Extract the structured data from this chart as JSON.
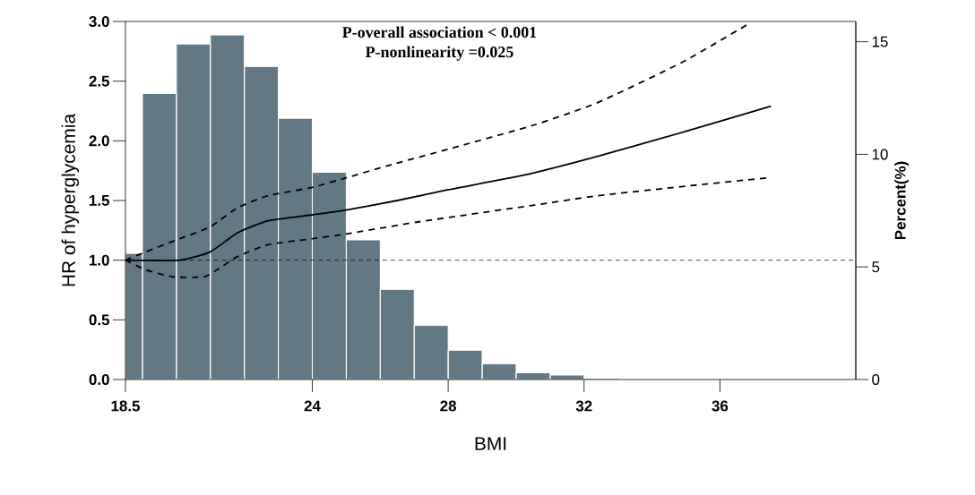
{
  "chart_data": {
    "type": "line",
    "xlabel": "BMI",
    "ylabel": "HR of hyperglycemia",
    "y2label": "Percent(%)",
    "annotations": [
      "**P-overall association < 0.001**",
      "**P-nonlinearity =0.025**"
    ],
    "xlim": [
      18.5,
      40
    ],
    "xticks": [
      18.5,
      24,
      28,
      32,
      36
    ],
    "ylim": [
      0,
      3
    ],
    "yticks": [
      {
        "value": 0,
        "label": "0.0"
      },
      {
        "value": 0.5,
        "label": "0.5"
      },
      {
        "value": 1,
        "label": "1.0"
      },
      {
        "value": 1.5,
        "label": "1.5"
      },
      {
        "value": 2,
        "label": "2.0"
      },
      {
        "value": 2.5,
        "label": "2.5"
      },
      {
        "value": 3,
        "label": "3.0"
      }
    ],
    "y2lim": [
      0,
      15.9
    ],
    "y2ticks": [
      0,
      5,
      10,
      15
    ],
    "grid": false,
    "ref_lines": [
      {
        "axis": "y",
        "value": 1,
        "line_style": "dashed",
        "color": "#000000"
      }
    ],
    "series": [
      {
        "type": "histogram",
        "axis": "y2",
        "color": "#627884",
        "bins": [
          18.5,
          19,
          20,
          21,
          22,
          23,
          24,
          25,
          26,
          27,
          28,
          29,
          30,
          31,
          32,
          33
        ],
        "values": [
          5.6,
          12.7,
          14.9,
          15.3,
          13.9,
          11.6,
          9.2,
          6.2,
          4.0,
          2.4,
          1.3,
          0.7,
          0.3,
          0.2,
          0.05
        ]
      },
      {
        "line_style": "solid",
        "color": "#000000",
        "x": [
          18.5,
          20.1,
          21.0,
          21.8,
          22.7,
          24.0,
          25.0,
          26.5,
          28.0,
          30.2,
          32.4,
          35.0,
          37.5
        ],
        "values": [
          1.0,
          1.0,
          1.07,
          1.23,
          1.33,
          1.38,
          1.42,
          1.5,
          1.59,
          1.71,
          1.87,
          2.08,
          2.29
        ]
      },
      {
        "line_style": "dashed",
        "color": "#000000",
        "x": [
          18.5,
          19.1,
          20.1,
          21.0,
          21.8,
          22.7,
          24.0,
          25.0,
          26.2,
          28.0,
          30.5,
          32.4,
          34.9,
          36.9
        ],
        "values": [
          1.0,
          1.07,
          1.18,
          1.28,
          1.44,
          1.54,
          1.61,
          1.69,
          1.79,
          1.93,
          2.13,
          2.32,
          2.66,
          2.99
        ]
      },
      {
        "line_style": "dashed",
        "color": "#000000",
        "x": [
          18.5,
          19.1,
          19.9,
          20.8,
          21.2,
          21.8,
          22.7,
          24.0,
          25.0,
          27.1,
          30.5,
          32.4,
          35.0,
          37.4
        ],
        "values": [
          1.0,
          0.92,
          0.86,
          0.86,
          0.92,
          1.03,
          1.13,
          1.18,
          1.22,
          1.32,
          1.46,
          1.54,
          1.62,
          1.69
        ]
      }
    ]
  }
}
